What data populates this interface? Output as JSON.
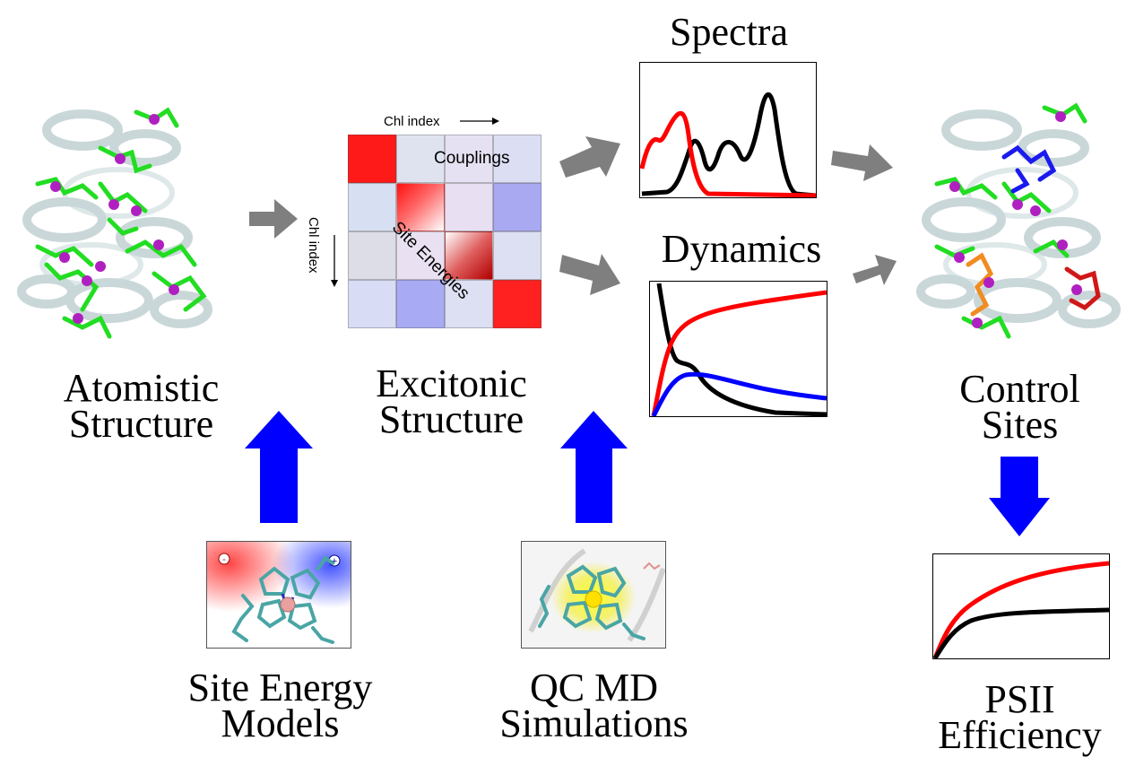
{
  "labels": {
    "atomistic": [
      "Atomistic",
      "Structure"
    ],
    "excitonic": [
      "Excitonic",
      "Structure"
    ],
    "control": [
      "Control",
      "Sites"
    ],
    "site_energy": [
      "Site Energy",
      "Models"
    ],
    "qcmd": [
      "QC MD",
      "Simulations"
    ],
    "psii": [
      "PSII",
      "Efficiency"
    ]
  },
  "titles": {
    "spectra": "Spectra",
    "dynamics": "Dynamics"
  },
  "matrix": {
    "col_axis": "Chl index",
    "row_axis": "Chl index",
    "couplings": "Couplings",
    "site_energies": "Site Energies"
  },
  "icons": {
    "minus": "-",
    "plus": "+"
  },
  "colors": {
    "red": "#ff0000",
    "black": "#000000",
    "blue": "#0000ff",
    "arrow_gray": "#7f7f7f",
    "arrow_blue": "#0000ff",
    "chlorophyll_green": "#22dd22",
    "magnesium_purple": "#b020c0"
  }
}
